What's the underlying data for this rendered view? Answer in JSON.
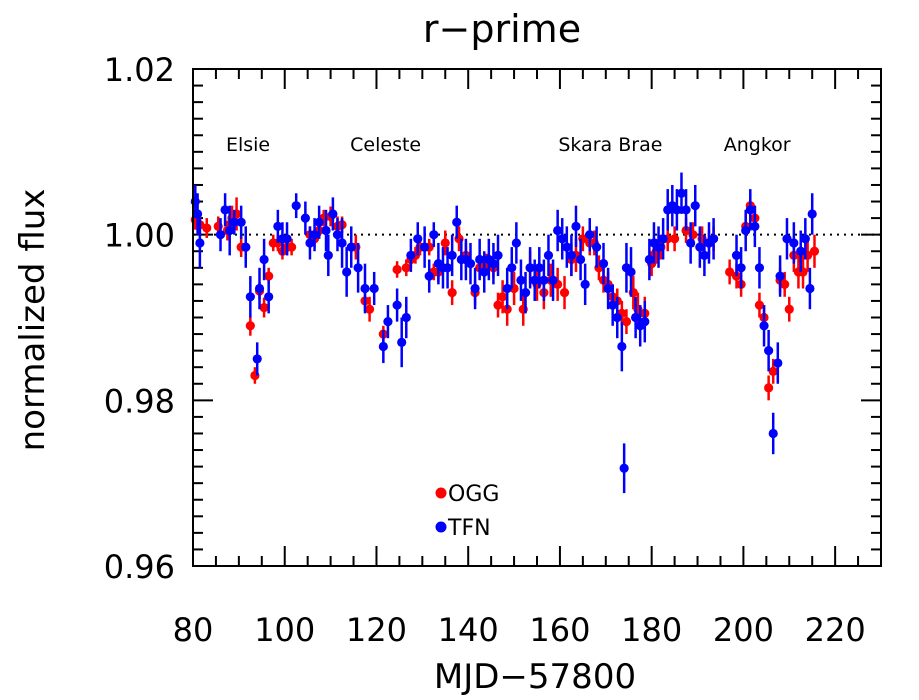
{
  "chart_data": {
    "type": "scatter",
    "title": "r−prime",
    "xlabel": "MJD−57800",
    "ylabel": "normalized flux",
    "xlim": [
      80,
      230
    ],
    "ylim": [
      0.96,
      1.02
    ],
    "x_ticks": [
      "80",
      "100",
      "120",
      "140",
      "160",
      "180",
      "200",
      "220"
    ],
    "y_ticks": [
      "0.96",
      "0.98",
      "1.00",
      "1.02"
    ],
    "reference_line": 1.0,
    "grid": false,
    "legend_position": "lower-left inside",
    "annotations": [
      {
        "text": "Elsie",
        "x": 92
      },
      {
        "text": "Celeste",
        "x": 122
      },
      {
        "text": "Skara Brae",
        "x": 171
      },
      {
        "text": "Angkor",
        "x": 203
      }
    ],
    "series": [
      {
        "name": "OGG",
        "color": "#ff0000",
        "points": [
          [
            80.5,
            1.0018,
            0.0012
          ],
          [
            81.5,
            1.0012,
            0.0012
          ],
          [
            83.0,
            1.0008,
            0.0012
          ],
          [
            85.5,
            1.001,
            0.0012
          ],
          [
            87.5,
            1.0005,
            0.0012
          ],
          [
            88.5,
            1.002,
            0.0015
          ],
          [
            89.5,
            1.0025,
            0.002
          ],
          [
            90.5,
            0.9985,
            0.0012
          ],
          [
            91.5,
            0.9985,
            0.0012
          ],
          [
            92.5,
            0.989,
            0.0012
          ],
          [
            93.5,
            0.983,
            0.001
          ],
          [
            94.5,
            0.9932,
            0.001
          ],
          [
            95.5,
            0.9912,
            0.0012
          ],
          [
            96.5,
            0.995,
            0.001
          ],
          [
            97.5,
            0.999,
            0.001
          ],
          [
            98.5,
            0.999,
            0.001
          ],
          [
            99.5,
            0.998,
            0.001
          ],
          [
            100.5,
            0.9985,
            0.001
          ],
          [
            101.5,
            0.9985,
            0.001
          ],
          [
            105.5,
            1.0,
            0.001
          ],
          [
            106.5,
            0.9995,
            0.001
          ],
          [
            107.5,
            1.0005,
            0.001
          ],
          [
            108.5,
            1.002,
            0.001
          ],
          [
            110.0,
            1.0022,
            0.0012
          ],
          [
            111.5,
            1.001,
            0.0012
          ],
          [
            112.5,
            1.0012,
            0.001
          ],
          [
            115.5,
            0.9985,
            0.0015
          ],
          [
            117.5,
            0.992,
            0.0012
          ],
          [
            118.5,
            0.991,
            0.0015
          ],
          [
            121.5,
            0.988,
            0.001
          ],
          [
            124.5,
            0.9958,
            0.001
          ],
          [
            126.5,
            0.996,
            0.001
          ],
          [
            127.5,
            0.997,
            0.001
          ],
          [
            128.5,
            0.9975,
            0.001
          ],
          [
            129.5,
            0.9985,
            0.001
          ],
          [
            131.5,
            0.9985,
            0.001
          ],
          [
            132.5,
            0.9955,
            0.001
          ],
          [
            133.5,
            0.9955,
            0.0012
          ],
          [
            135.0,
            0.999,
            0.0015
          ],
          [
            136.5,
            0.993,
            0.0015
          ],
          [
            138.0,
            0.9995,
            0.0015
          ],
          [
            139.5,
            0.9975,
            0.0015
          ],
          [
            141.5,
            0.993,
            0.0015
          ],
          [
            142.5,
            0.996,
            0.0012
          ],
          [
            144.0,
            0.9965,
            0.0012
          ],
          [
            145.5,
            0.996,
            0.0012
          ],
          [
            146.5,
            0.9915,
            0.0015
          ],
          [
            147.5,
            0.9925,
            0.002
          ],
          [
            148.5,
            0.991,
            0.002
          ],
          [
            150.0,
            0.9935,
            0.002
          ],
          [
            152.0,
            0.991,
            0.002
          ],
          [
            153.5,
            0.996,
            0.002
          ],
          [
            155.0,
            0.994,
            0.002
          ],
          [
            156.5,
            0.993,
            0.002
          ],
          [
            158.0,
            0.9945,
            0.002
          ],
          [
            159.5,
            0.994,
            0.002
          ],
          [
            161.0,
            0.993,
            0.002
          ],
          [
            162.5,
            0.997,
            0.002
          ],
          [
            163.5,
            0.9975,
            0.002
          ],
          [
            165.0,
            0.9995,
            0.0015
          ],
          [
            166.5,
            0.999,
            0.0015
          ],
          [
            167.5,
            0.999,
            0.0015
          ],
          [
            168.5,
            0.996,
            0.0015
          ],
          [
            169.5,
            0.9945,
            0.0015
          ],
          [
            170.5,
            0.994,
            0.0015
          ],
          [
            171.5,
            0.9925,
            0.0015
          ],
          [
            172.5,
            0.992,
            0.0015
          ],
          [
            173.5,
            0.9905,
            0.0015
          ],
          [
            174.5,
            0.9895,
            0.0015
          ],
          [
            176.0,
            0.993,
            0.002
          ],
          [
            177.0,
            0.991,
            0.002
          ],
          [
            178.5,
            0.9905,
            0.002
          ],
          [
            180.0,
            0.9965,
            0.0015
          ],
          [
            181.0,
            0.998,
            0.0015
          ],
          [
            182.0,
            0.9985,
            0.0015
          ],
          [
            183.5,
            0.9995,
            0.0015
          ],
          [
            185.0,
            0.9995,
            0.0015
          ],
          [
            187.5,
            1.0005,
            0.0015
          ],
          [
            189.0,
            1.0,
            0.0015
          ],
          [
            191.0,
            0.9995,
            0.0015
          ],
          [
            192.5,
            0.999,
            0.0015
          ],
          [
            193.5,
            0.9995,
            0.0015
          ],
          [
            197.0,
            0.9955,
            0.0015
          ],
          [
            198.5,
            0.995,
            0.0015
          ],
          [
            199.5,
            0.994,
            0.0015
          ],
          [
            200.5,
            1.001,
            0.0015
          ],
          [
            201.5,
            1.0035,
            0.0015
          ],
          [
            202.5,
            1.002,
            0.0015
          ],
          [
            203.5,
            0.9915,
            0.0015
          ],
          [
            204.5,
            0.99,
            0.0015
          ],
          [
            205.5,
            0.9815,
            0.0015
          ],
          [
            206.5,
            0.9835,
            0.0015
          ],
          [
            208.0,
            0.9945,
            0.0015
          ],
          [
            209.0,
            0.994,
            0.0015
          ],
          [
            210.0,
            0.991,
            0.0015
          ],
          [
            211.0,
            0.9975,
            0.002
          ],
          [
            212.0,
            0.9955,
            0.002
          ],
          [
            213.0,
            0.9955,
            0.002
          ],
          [
            214.0,
            0.9975,
            0.002
          ],
          [
            215.5,
            0.998,
            0.002
          ]
        ]
      },
      {
        "name": "TFN",
        "color": "#0000ff",
        "points": [
          [
            80.5,
            1.004,
            0.002
          ],
          [
            81.0,
            1.0025,
            0.0025
          ],
          [
            81.5,
            0.999,
            0.003
          ],
          [
            86.0,
            1.0,
            0.002
          ],
          [
            87.0,
            1.003,
            0.002
          ],
          [
            88.0,
            1.0005,
            0.003
          ],
          [
            89.0,
            1.0015,
            0.0015
          ],
          [
            90.5,
            1.0015,
            0.002
          ],
          [
            91.5,
            0.9985,
            0.0025
          ],
          [
            92.5,
            0.9925,
            0.0025
          ],
          [
            94.0,
            0.985,
            0.002
          ],
          [
            94.5,
            0.9935,
            0.0025
          ],
          [
            95.5,
            0.997,
            0.0025
          ],
          [
            96.5,
            0.9925,
            0.002
          ],
          [
            98.5,
            1.001,
            0.002
          ],
          [
            99.5,
            0.9995,
            0.002
          ],
          [
            100.5,
            0.9995,
            0.002
          ],
          [
            102.5,
            1.0035,
            0.0015
          ],
          [
            104.5,
            1.002,
            0.002
          ],
          [
            105.5,
            0.999,
            0.002
          ],
          [
            106.5,
            1.0,
            0.002
          ],
          [
            107.5,
            1.0015,
            0.002
          ],
          [
            109.0,
            1.0005,
            0.0025
          ],
          [
            109.5,
            0.9975,
            0.0025
          ],
          [
            110.5,
            1.0025,
            0.002
          ],
          [
            111.5,
            1.0,
            0.002
          ],
          [
            112.5,
            0.999,
            0.003
          ],
          [
            113.5,
            0.9955,
            0.003
          ],
          [
            114.5,
            0.9985,
            0.0025
          ],
          [
            116.0,
            0.996,
            0.003
          ],
          [
            117.5,
            0.9935,
            0.003
          ],
          [
            119.5,
            0.9935,
            0.002
          ],
          [
            121.5,
            0.9865,
            0.002
          ],
          [
            122.5,
            0.9895,
            0.002
          ],
          [
            124.5,
            0.9915,
            0.002
          ],
          [
            125.5,
            0.987,
            0.003
          ],
          [
            126.5,
            0.99,
            0.0025
          ],
          [
            127.5,
            0.9975,
            0.002
          ],
          [
            129.0,
            0.9995,
            0.002
          ],
          [
            130.5,
            0.9985,
            0.0025
          ],
          [
            131.5,
            0.995,
            0.002
          ],
          [
            132.5,
            1.0,
            0.0015
          ],
          [
            133.5,
            0.9965,
            0.0025
          ],
          [
            134.5,
            0.996,
            0.0025
          ],
          [
            135.5,
            0.996,
            0.0025
          ],
          [
            136.5,
            0.9975,
            0.0025
          ],
          [
            137.5,
            1.0015,
            0.002
          ],
          [
            138.5,
            0.997,
            0.0025
          ],
          [
            139.5,
            0.997,
            0.0025
          ],
          [
            140.5,
            0.9965,
            0.0025
          ],
          [
            141.5,
            0.9935,
            0.0025
          ],
          [
            142.5,
            0.997,
            0.0025
          ],
          [
            143.5,
            0.9955,
            0.0025
          ],
          [
            144.5,
            0.997,
            0.0025
          ],
          [
            145.5,
            0.9965,
            0.0025
          ],
          [
            146.5,
            0.9975,
            0.0025
          ],
          [
            148.5,
            0.9935,
            0.0025
          ],
          [
            149.5,
            0.996,
            0.0025
          ],
          [
            150.5,
            0.999,
            0.0025
          ],
          [
            151.5,
            0.9945,
            0.0025
          ],
          [
            152.5,
            0.993,
            0.0025
          ],
          [
            153.5,
            0.996,
            0.0025
          ],
          [
            154.5,
            0.9945,
            0.0025
          ],
          [
            155.5,
            0.996,
            0.0025
          ],
          [
            156.5,
            0.9945,
            0.0025
          ],
          [
            157.5,
            0.9975,
            0.0025
          ],
          [
            158.5,
            0.9945,
            0.0025
          ],
          [
            159.5,
            1.0005,
            0.0025
          ],
          [
            160.5,
            0.9995,
            0.0025
          ],
          [
            161.5,
            0.9985,
            0.0025
          ],
          [
            162.5,
            0.9975,
            0.0025
          ],
          [
            163.5,
            1.001,
            0.0025
          ],
          [
            164.5,
            0.997,
            0.0025
          ],
          [
            165.5,
            0.994,
            0.0025
          ],
          [
            166.5,
            1.0,
            0.002
          ],
          [
            168.0,
            0.9985,
            0.0025
          ],
          [
            169.5,
            0.9965,
            0.0025
          ],
          [
            170.5,
            0.9935,
            0.0025
          ],
          [
            171.5,
            0.9915,
            0.0025
          ],
          [
            172.5,
            0.99,
            0.0025
          ],
          [
            173.5,
            0.9865,
            0.003
          ],
          [
            174.0,
            0.9718,
            0.003
          ],
          [
            174.5,
            0.996,
            0.003
          ],
          [
            175.5,
            0.9955,
            0.003
          ],
          [
            176.5,
            0.99,
            0.0025
          ],
          [
            177.5,
            0.989,
            0.0025
          ],
          [
            178.5,
            0.9895,
            0.0025
          ],
          [
            179.5,
            0.997,
            0.0025
          ],
          [
            180.5,
            0.999,
            0.0025
          ],
          [
            181.5,
            0.9985,
            0.0025
          ],
          [
            182.5,
            0.9995,
            0.0025
          ],
          [
            183.5,
            1.003,
            0.0025
          ],
          [
            184.5,
            1.0035,
            0.0025
          ],
          [
            185.5,
            1.003,
            0.0025
          ],
          [
            186.5,
            1.005,
            0.0025
          ],
          [
            187.5,
            1.003,
            0.0025
          ],
          [
            188.5,
            0.999,
            0.0025
          ],
          [
            189.5,
            1.0035,
            0.0025
          ],
          [
            190.5,
            0.9985,
            0.0025
          ],
          [
            191.5,
            0.9975,
            0.0025
          ],
          [
            192.5,
            0.999,
            0.0025
          ],
          [
            193.5,
            0.9995,
            0.0025
          ],
          [
            198.5,
            0.9975,
            0.0025
          ],
          [
            199.5,
            0.996,
            0.0025
          ],
          [
            200.5,
            1.0005,
            0.0025
          ],
          [
            201.5,
            1.003,
            0.0025
          ],
          [
            202.5,
            1.001,
            0.0025
          ],
          [
            203.5,
            0.996,
            0.0025
          ],
          [
            204.5,
            0.989,
            0.0025
          ],
          [
            205.5,
            0.986,
            0.0025
          ],
          [
            206.5,
            0.976,
            0.0025
          ],
          [
            207.5,
            0.9845,
            0.0025
          ],
          [
            208.0,
            0.995,
            0.0025
          ],
          [
            209.5,
            0.9995,
            0.0025
          ],
          [
            211.0,
            0.999,
            0.0025
          ],
          [
            212.5,
            0.998,
            0.0025
          ],
          [
            213.5,
            0.9995,
            0.0025
          ],
          [
            214.5,
            0.9935,
            0.0025
          ],
          [
            215.0,
            1.0025,
            0.0025
          ]
        ]
      }
    ]
  }
}
